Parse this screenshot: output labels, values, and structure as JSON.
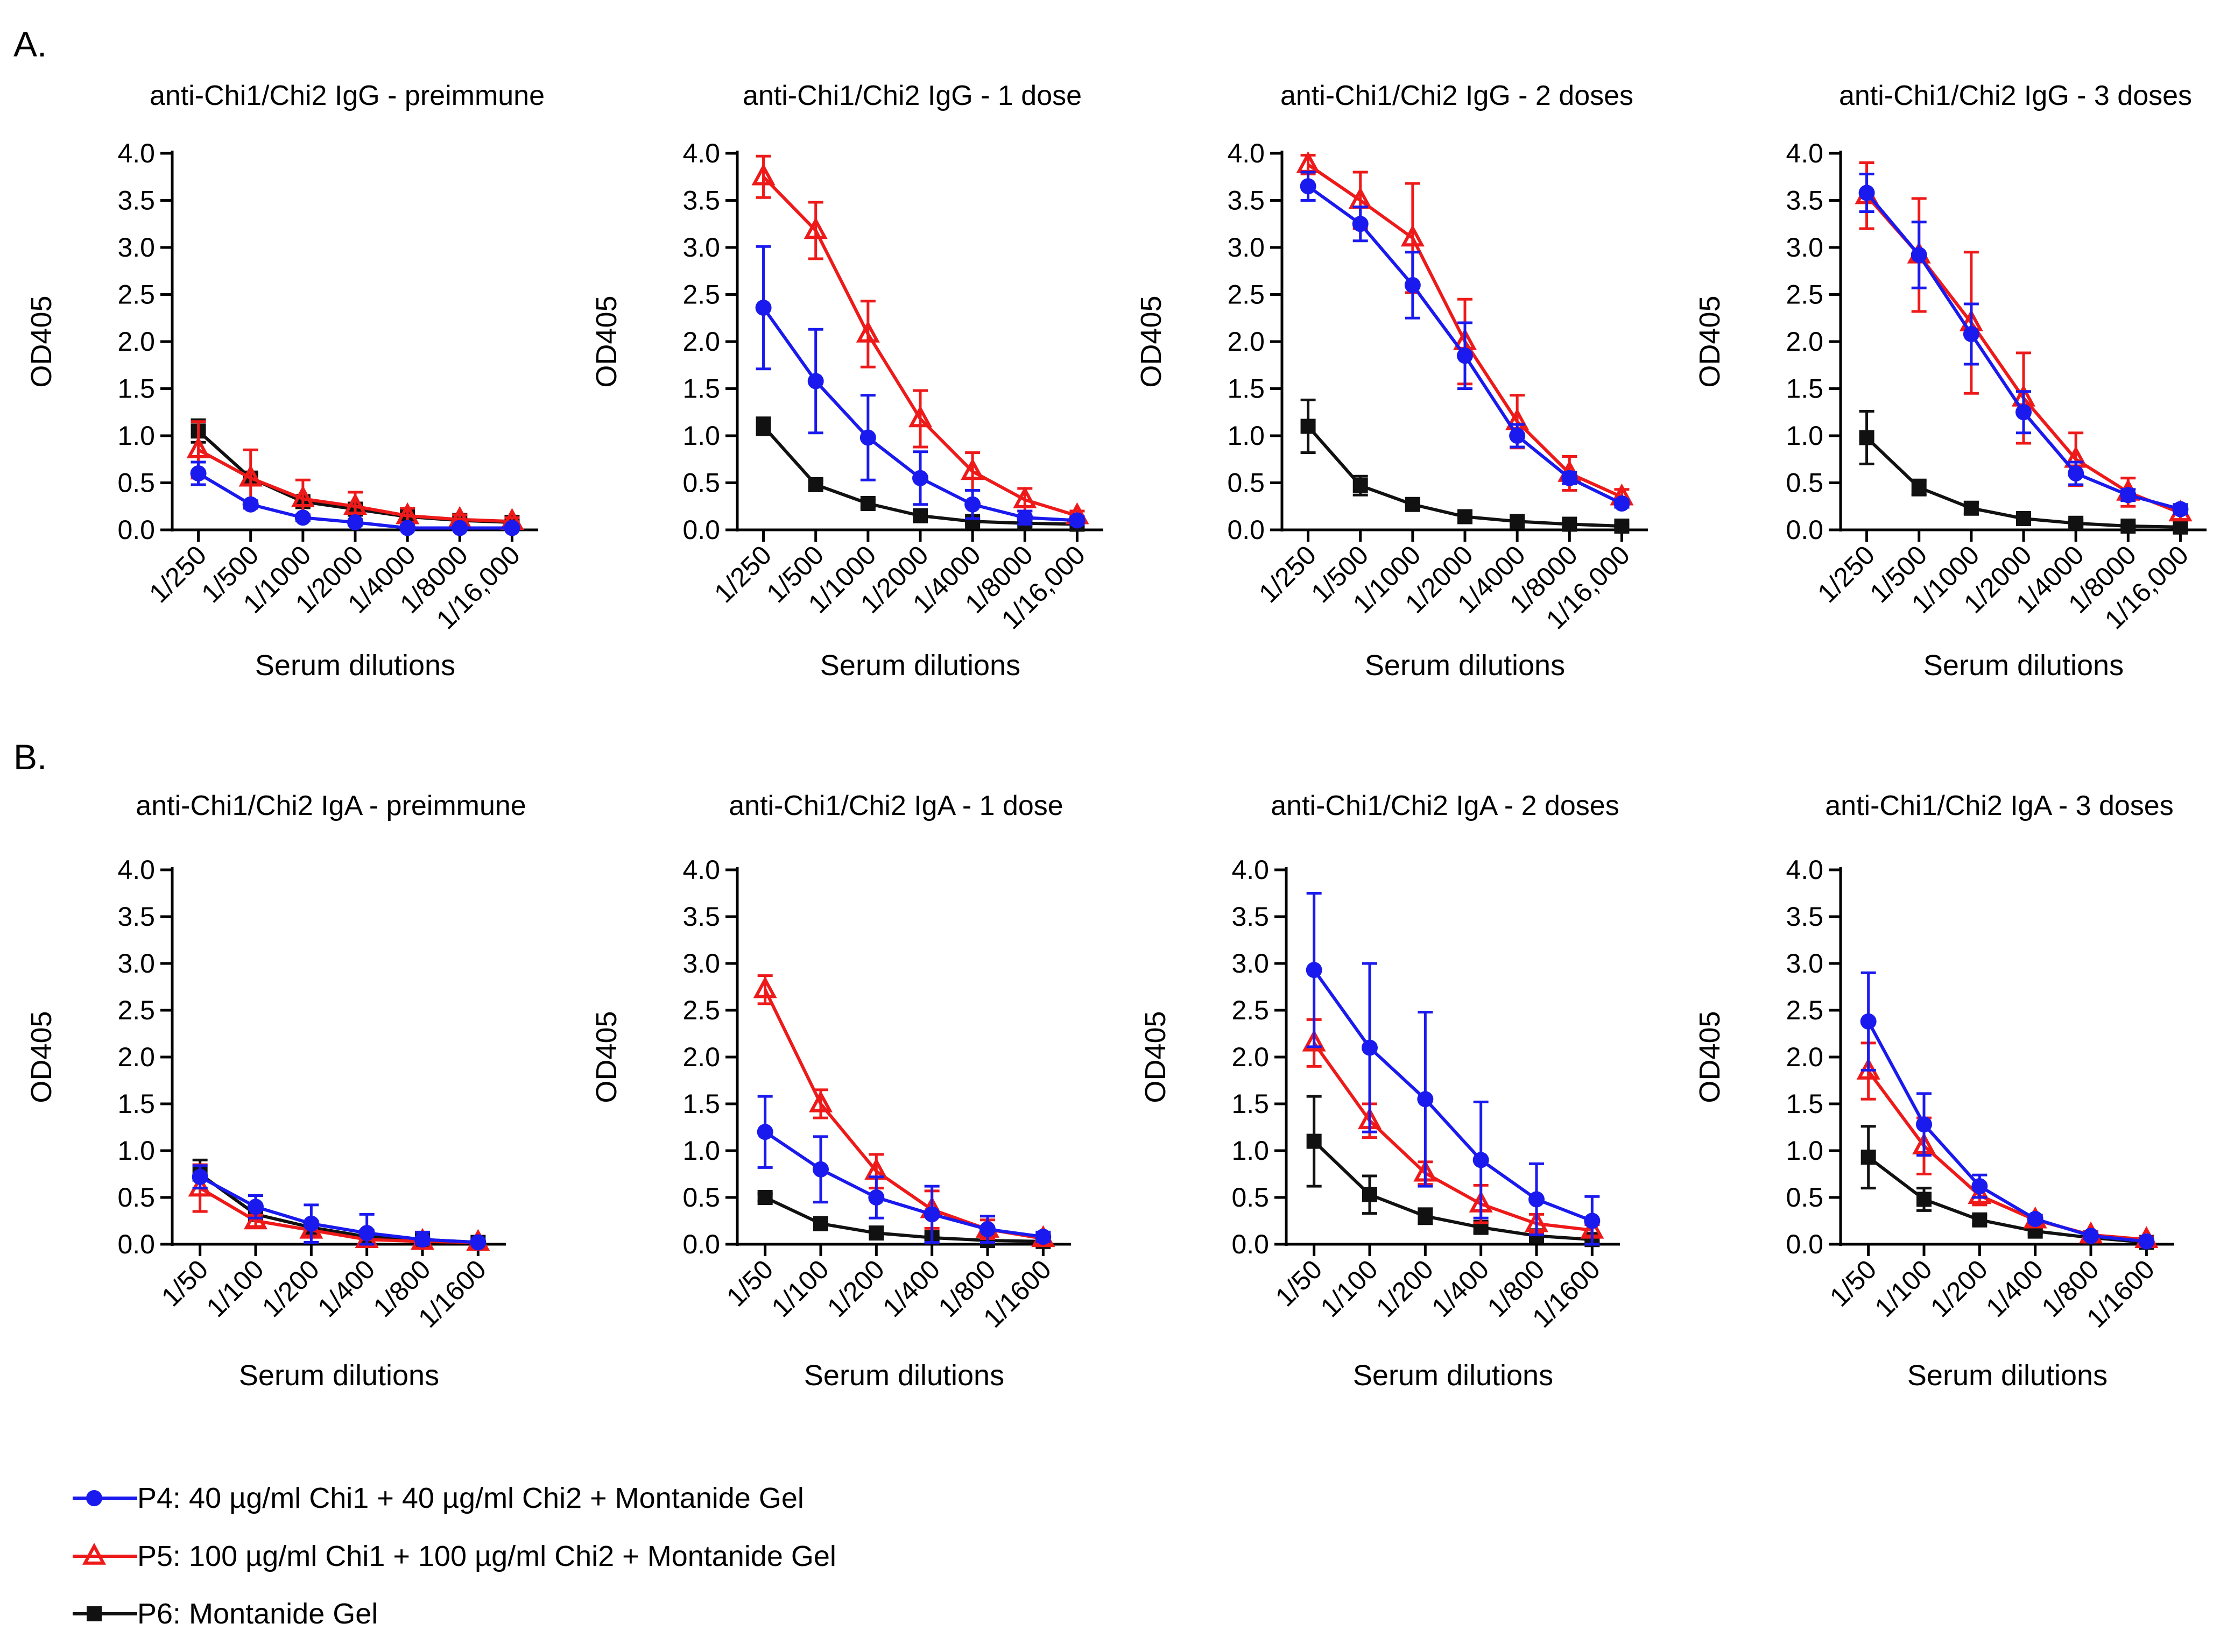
{
  "panel_labels": {
    "A": "A.",
    "B": "B."
  },
  "colors": {
    "P4": "#1a1aee",
    "P5": "#ee1a1a",
    "P6": "#111111"
  },
  "legend": [
    {
      "series": "P4",
      "marker": "circle",
      "label": "P4: 40 µg/ml Chi1 + 40 µg/ml Chi2 + Montanide Gel"
    },
    {
      "series": "P5",
      "marker": "triangle-open",
      "label": "P5: 100 µg/ml Chi1 + 100 µg/ml Chi2 + Montanide Gel"
    },
    {
      "series": "P6",
      "marker": "square",
      "label": "P6: Montanide Gel"
    }
  ],
  "chart_data": [
    {
      "type": "line",
      "panel": "A",
      "title": "anti-Chi1/Chi2 IgG - preimmune",
      "xlabel": "Serum dilutions",
      "ylabel": "OD405",
      "ylim": [
        0,
        4.0
      ],
      "yticks": [
        "0.0",
        "0.5",
        "1.0",
        "1.5",
        "2.0",
        "2.5",
        "3.0",
        "3.5",
        "4.0"
      ],
      "categories": [
        "1/250",
        "1/500",
        "1/1000",
        "1/2000",
        "1/4000",
        "1/8000",
        "1/16,000"
      ],
      "series": [
        {
          "name": "P4",
          "values": [
            0.6,
            0.27,
            0.13,
            0.08,
            0.02,
            0.02,
            0.02
          ],
          "errors": [
            0.12,
            0.04,
            0.03,
            0.03,
            0.02,
            0.02,
            0.02
          ]
        },
        {
          "name": "P5",
          "values": [
            0.85,
            0.55,
            0.33,
            0.25,
            0.15,
            0.11,
            0.09
          ],
          "errors": [
            0.3,
            0.3,
            0.2,
            0.15,
            0.08,
            0.05,
            0.04
          ]
        },
        {
          "name": "P6",
          "values": [
            1.05,
            0.55,
            0.3,
            0.22,
            0.14,
            0.1,
            0.08
          ],
          "errors": [
            0.12,
            0.05,
            0.04,
            0.03,
            0.03,
            0.02,
            0.02
          ]
        }
      ]
    },
    {
      "type": "line",
      "panel": "A",
      "title": "anti-Chi1/Chi2 IgG - 1 dose",
      "xlabel": "Serum dilutions",
      "ylabel": "OD405",
      "ylim": [
        0,
        4.0
      ],
      "yticks": [
        "0.0",
        "0.5",
        "1.0",
        "1.5",
        "2.0",
        "2.5",
        "3.0",
        "3.5",
        "4.0"
      ],
      "categories": [
        "1/250",
        "1/500",
        "1/1000",
        "1/2000",
        "1/4000",
        "1/8000",
        "1/16,000"
      ],
      "series": [
        {
          "name": "P4",
          "values": [
            2.36,
            1.58,
            0.98,
            0.55,
            0.27,
            0.13,
            0.1
          ],
          "errors": [
            0.65,
            0.55,
            0.45,
            0.28,
            0.15,
            0.07,
            0.04
          ]
        },
        {
          "name": "P5",
          "values": [
            3.75,
            3.18,
            2.08,
            1.18,
            0.62,
            0.32,
            0.15
          ],
          "errors": [
            0.22,
            0.3,
            0.35,
            0.3,
            0.2,
            0.12,
            0.05
          ]
        },
        {
          "name": "P6",
          "values": [
            1.1,
            0.48,
            0.28,
            0.15,
            0.09,
            0.07,
            0.06
          ],
          "errors": [
            0.09,
            0.04,
            0.04,
            0.03,
            0.02,
            0.02,
            0.02
          ]
        }
      ]
    },
    {
      "type": "line",
      "panel": "A",
      "title": "anti-Chi1/Chi2 IgG - 2 doses",
      "xlabel": "Serum dilutions",
      "ylabel": "OD405",
      "ylim": [
        0,
        4.0
      ],
      "yticks": [
        "0.0",
        "0.5",
        "1.0",
        "1.5",
        "2.0",
        "2.5",
        "3.0",
        "3.5",
        "4.0"
      ],
      "categories": [
        "1/250",
        "1/500",
        "1/1000",
        "1/2000",
        "1/4000",
        "1/8000",
        "1/16,000"
      ],
      "series": [
        {
          "name": "P4",
          "values": [
            3.65,
            3.25,
            2.6,
            1.85,
            1.0,
            0.55,
            0.28
          ],
          "errors": [
            0.15,
            0.18,
            0.35,
            0.35,
            0.12,
            0.06,
            0.04
          ]
        },
        {
          "name": "P5",
          "values": [
            3.88,
            3.5,
            3.1,
            2.0,
            1.15,
            0.6,
            0.35
          ],
          "errors": [
            0.1,
            0.3,
            0.58,
            0.45,
            0.28,
            0.18,
            0.08
          ]
        },
        {
          "name": "P6",
          "values": [
            1.1,
            0.47,
            0.27,
            0.14,
            0.09,
            0.06,
            0.04
          ],
          "errors": [
            0.28,
            0.1,
            0.06,
            0.04,
            0.03,
            0.02,
            0.02
          ]
        }
      ]
    },
    {
      "type": "line",
      "panel": "A",
      "title": "anti-Chi1/Chi2 IgG - 3 doses",
      "xlabel": "Serum dilutions",
      "ylabel": "OD405",
      "ylim": [
        0,
        4.0
      ],
      "yticks": [
        "0.0",
        "0.5",
        "1.0",
        "1.5",
        "2.0",
        "2.5",
        "3.0",
        "3.5",
        "4.0"
      ],
      "categories": [
        "1/250",
        "1/500",
        "1/1000",
        "1/2000",
        "1/4000",
        "1/8000",
        "1/16,000"
      ],
      "series": [
        {
          "name": "P4",
          "values": [
            3.58,
            2.92,
            2.08,
            1.25,
            0.6,
            0.37,
            0.22
          ],
          "errors": [
            0.2,
            0.35,
            0.32,
            0.22,
            0.12,
            0.06,
            0.05
          ]
        },
        {
          "name": "P5",
          "values": [
            3.55,
            2.92,
            2.2,
            1.4,
            0.75,
            0.4,
            0.18
          ],
          "errors": [
            0.35,
            0.6,
            0.75,
            0.48,
            0.28,
            0.15,
            0.07
          ]
        },
        {
          "name": "P6",
          "values": [
            0.98,
            0.45,
            0.23,
            0.12,
            0.07,
            0.04,
            0.03
          ],
          "errors": [
            0.28,
            0.08,
            0.06,
            0.05,
            0.03,
            0.02,
            0.02
          ]
        }
      ]
    },
    {
      "type": "line",
      "panel": "B",
      "title": "anti-Chi1/Chi2 IgA - preimmune",
      "xlabel": "Serum dilutions",
      "ylabel": "OD405",
      "ylim": [
        0,
        4.0
      ],
      "yticks": [
        "0.0",
        "0.5",
        "1.0",
        "1.5",
        "2.0",
        "2.5",
        "3.0",
        "3.5",
        "4.0"
      ],
      "categories": [
        "1/50",
        "1/100",
        "1/200",
        "1/400",
        "1/800",
        "1/1600"
      ],
      "series": [
        {
          "name": "P4",
          "values": [
            0.72,
            0.4,
            0.22,
            0.12,
            0.05,
            0.02
          ],
          "errors": [
            0.12,
            0.12,
            0.2,
            0.2,
            0.08,
            0.03
          ]
        },
        {
          "name": "P5",
          "values": [
            0.6,
            0.25,
            0.15,
            0.05,
            0.03,
            0.02
          ],
          "errors": [
            0.25,
            0.06,
            0.06,
            0.05,
            0.03,
            0.02
          ]
        },
        {
          "name": "P6",
          "values": [
            0.75,
            0.32,
            0.18,
            0.08,
            0.05,
            0.02
          ],
          "errors": [
            0.15,
            0.05,
            0.05,
            0.04,
            0.03,
            0.02
          ]
        }
      ]
    },
    {
      "type": "line",
      "panel": "B",
      "title": "anti-Chi1/Chi2 IgA - 1 dose",
      "xlabel": "Serum dilutions",
      "ylabel": "OD405",
      "ylim": [
        0,
        4.0
      ],
      "yticks": [
        "0.0",
        "0.5",
        "1.0",
        "1.5",
        "2.0",
        "2.5",
        "3.0",
        "3.5",
        "4.0"
      ],
      "categories": [
        "1/50",
        "1/100",
        "1/200",
        "1/400",
        "1/800",
        "1/1600"
      ],
      "series": [
        {
          "name": "P4",
          "values": [
            1.2,
            0.8,
            0.5,
            0.32,
            0.16,
            0.08
          ],
          "errors": [
            0.38,
            0.35,
            0.22,
            0.3,
            0.14,
            0.05
          ]
        },
        {
          "name": "P5",
          "values": [
            2.72,
            1.5,
            0.78,
            0.37,
            0.16,
            0.06
          ],
          "errors": [
            0.15,
            0.15,
            0.18,
            0.2,
            0.1,
            0.05
          ]
        },
        {
          "name": "P6",
          "values": [
            0.5,
            0.22,
            0.12,
            0.07,
            0.04,
            0.03
          ],
          "errors": [
            0.04,
            0.03,
            0.02,
            0.02,
            0.02,
            0.02
          ]
        }
      ]
    },
    {
      "type": "line",
      "panel": "B",
      "title": "anti-Chi1/Chi2 IgA -  2 doses",
      "xlabel": "Serum dilutions",
      "ylabel": "OD405",
      "ylim": [
        0,
        4.0
      ],
      "yticks": [
        "0.0",
        "0.5",
        "1.0",
        "1.5",
        "2.0",
        "2.5",
        "3.0",
        "3.5",
        "4.0"
      ],
      "categories": [
        "1/50",
        "1/100",
        "1/200",
        "1/400",
        "1/800",
        "1/1600"
      ],
      "series": [
        {
          "name": "P4",
          "values": [
            2.93,
            2.1,
            1.55,
            0.9,
            0.48,
            0.25
          ],
          "errors": [
            0.82,
            0.9,
            0.93,
            0.62,
            0.38,
            0.26
          ]
        },
        {
          "name": "P5",
          "values": [
            2.15,
            1.32,
            0.76,
            0.43,
            0.22,
            0.15
          ],
          "errors": [
            0.25,
            0.18,
            0.12,
            0.2,
            0.1,
            0.06
          ]
        },
        {
          "name": "P6",
          "values": [
            1.1,
            0.53,
            0.3,
            0.18,
            0.09,
            0.05
          ],
          "errors": [
            0.48,
            0.2,
            0.08,
            0.05,
            0.03,
            0.02
          ]
        }
      ]
    },
    {
      "type": "line",
      "panel": "B",
      "title": "anti-Chi1/Chi2 IgA -  3 doses",
      "xlabel": "Serum dilutions",
      "ylabel": "OD405",
      "ylim": [
        0,
        4.0
      ],
      "yticks": [
        "0.0",
        "0.5",
        "1.0",
        "1.5",
        "2.0",
        "2.5",
        "3.0",
        "3.5",
        "4.0"
      ],
      "categories": [
        "1/50",
        "1/100",
        "1/200",
        "1/400",
        "1/800",
        "1/1600"
      ],
      "series": [
        {
          "name": "P4",
          "values": [
            2.38,
            1.28,
            0.62,
            0.27,
            0.09,
            0.03
          ],
          "errors": [
            0.52,
            0.33,
            0.12,
            0.04,
            0.03,
            0.02
          ]
        },
        {
          "name": "P5",
          "values": [
            1.85,
            1.05,
            0.52,
            0.26,
            0.1,
            0.05
          ],
          "errors": [
            0.3,
            0.3,
            0.1,
            0.05,
            0.04,
            0.03
          ]
        },
        {
          "name": "P6",
          "values": [
            0.93,
            0.48,
            0.26,
            0.14,
            0.07,
            0.02
          ],
          "errors": [
            0.33,
            0.12,
            0.05,
            0.03,
            0.02,
            0.02
          ]
        }
      ]
    }
  ]
}
